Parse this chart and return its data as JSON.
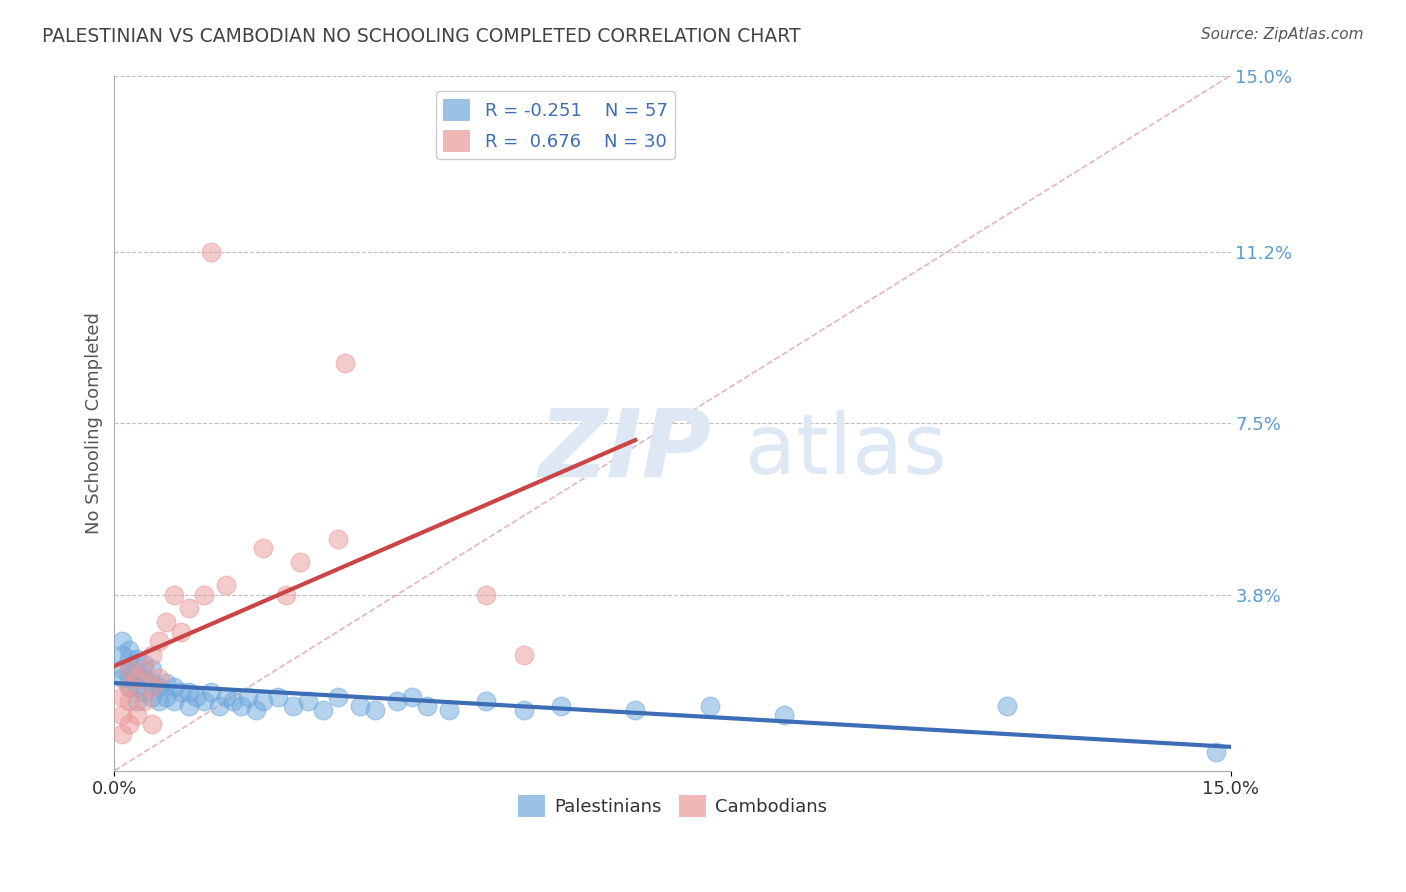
{
  "title": "PALESTINIAN VS CAMBODIAN NO SCHOOLING COMPLETED CORRELATION CHART",
  "source_text": "Source: ZipAtlas.com",
  "ylabel": "No Schooling Completed",
  "xmin": 0.0,
  "xmax": 0.15,
  "ymin": 0.0,
  "ymax": 0.15,
  "ytick_vals": [
    0.038,
    0.075,
    0.112,
    0.15
  ],
  "ytick_labels": [
    "3.8%",
    "7.5%",
    "11.2%",
    "15.0%"
  ],
  "xtick_positions": [
    0.0,
    0.15
  ],
  "xtick_labels": [
    "0.0%",
    "15.0%"
  ],
  "palestinian_R": -0.251,
  "palestinian_N": 57,
  "cambodian_R": 0.676,
  "cambodian_N": 30,
  "blue_color": "#6fa8dc",
  "pink_color": "#ea9999",
  "blue_line_color": "#3d6eb5",
  "pink_line_color": "#cc4444",
  "diagonal_color": "#e8b4b8",
  "title_color": "#434343",
  "source_color": "#555555",
  "axis_label_color": "#555555",
  "tick_color": "#5b9bd5",
  "grid_color": "#c0c0c0",
  "legend_text_color": "#3d6eb5",
  "watermark_color": "#dde8f4",
  "background_color": "#ffffff",
  "palestinian_x": [
    0.001,
    0.001,
    0.001,
    0.001,
    0.002,
    0.002,
    0.002,
    0.002,
    0.002,
    0.003,
    0.003,
    0.003,
    0.003,
    0.004,
    0.004,
    0.004,
    0.005,
    0.005,
    0.005,
    0.006,
    0.006,
    0.007,
    0.007,
    0.008,
    0.008,
    0.009,
    0.01,
    0.01,
    0.011,
    0.012,
    0.013,
    0.014,
    0.015,
    0.016,
    0.017,
    0.018,
    0.019,
    0.02,
    0.022,
    0.024,
    0.026,
    0.028,
    0.03,
    0.033,
    0.035,
    0.038,
    0.04,
    0.042,
    0.045,
    0.05,
    0.055,
    0.06,
    0.07,
    0.08,
    0.09,
    0.12,
    0.148
  ],
  "palestinian_y": [
    0.02,
    0.022,
    0.025,
    0.028,
    0.018,
    0.02,
    0.022,
    0.024,
    0.026,
    0.015,
    0.018,
    0.021,
    0.024,
    0.017,
    0.02,
    0.023,
    0.016,
    0.019,
    0.022,
    0.015,
    0.018,
    0.016,
    0.019,
    0.015,
    0.018,
    0.017,
    0.014,
    0.017,
    0.016,
    0.015,
    0.017,
    0.014,
    0.016,
    0.015,
    0.014,
    0.016,
    0.013,
    0.015,
    0.016,
    0.014,
    0.015,
    0.013,
    0.016,
    0.014,
    0.013,
    0.015,
    0.016,
    0.014,
    0.013,
    0.015,
    0.013,
    0.014,
    0.013,
    0.014,
    0.012,
    0.014,
    0.004
  ],
  "cambodian_x": [
    0.001,
    0.001,
    0.001,
    0.002,
    0.002,
    0.002,
    0.002,
    0.003,
    0.003,
    0.004,
    0.004,
    0.005,
    0.005,
    0.005,
    0.006,
    0.006,
    0.007,
    0.008,
    0.009,
    0.01,
    0.012,
    0.013,
    0.015,
    0.02,
    0.023,
    0.025,
    0.03,
    0.031,
    0.05,
    0.055
  ],
  "cambodian_y": [
    0.008,
    0.012,
    0.016,
    0.01,
    0.015,
    0.018,
    0.022,
    0.012,
    0.02,
    0.015,
    0.022,
    0.01,
    0.018,
    0.025,
    0.02,
    0.028,
    0.032,
    0.038,
    0.03,
    0.035,
    0.038,
    0.112,
    0.04,
    0.048,
    0.038,
    0.045,
    0.05,
    0.088,
    0.038,
    0.025
  ]
}
